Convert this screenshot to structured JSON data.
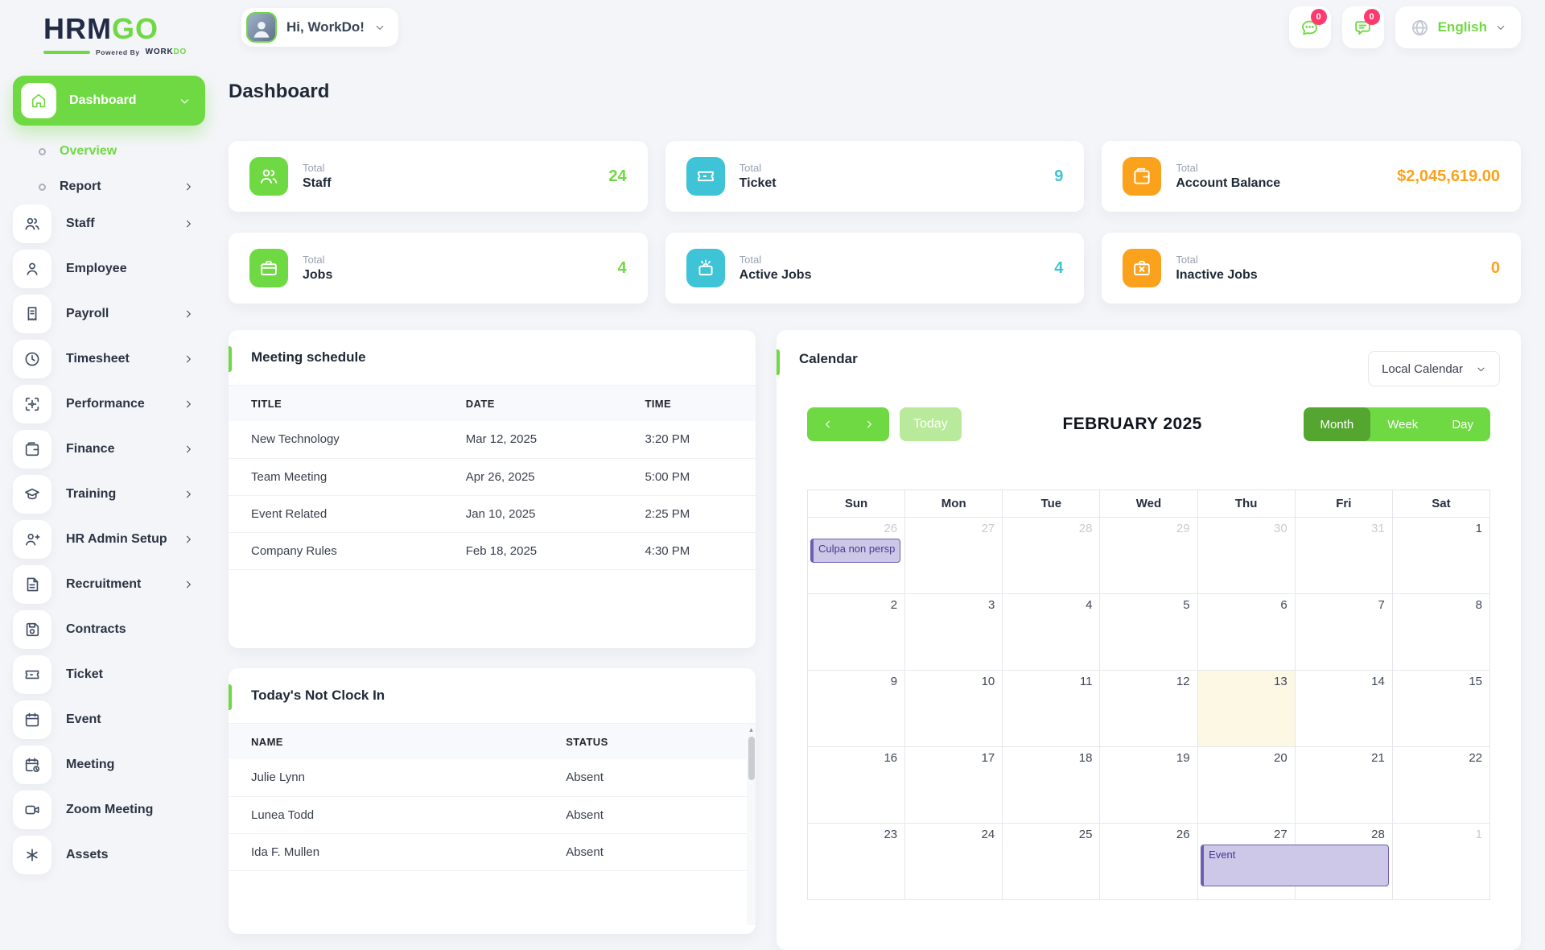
{
  "brand": {
    "name_primary": "HRM",
    "name_secondary": "GO",
    "powered_by": "Powered By",
    "powered_work": "WORK",
    "powered_do": "DO"
  },
  "header": {
    "greeting": "Hi, WorkDo!",
    "language": "English",
    "messages_badge": "0",
    "notifications_badge": "0"
  },
  "page": {
    "title": "Dashboard"
  },
  "sidebar": {
    "items": [
      {
        "label": "Dashboard",
        "icon": "home",
        "type": "parent"
      },
      {
        "label": "Overview",
        "type": "sub",
        "active": true
      },
      {
        "label": "Report",
        "type": "sub",
        "chevron": true
      },
      {
        "label": "Staff",
        "icon": "users",
        "chevron": true
      },
      {
        "label": "Employee",
        "icon": "user"
      },
      {
        "label": "Payroll",
        "icon": "receipt",
        "chevron": true
      },
      {
        "label": "Timesheet",
        "icon": "clock",
        "chevron": true
      },
      {
        "label": "Performance",
        "icon": "scan",
        "chevron": true
      },
      {
        "label": "Finance",
        "icon": "wallet",
        "chevron": true
      },
      {
        "label": "Training",
        "icon": "graduation",
        "chevron": true
      },
      {
        "label": "HR Admin Setup",
        "icon": "user-plus",
        "chevron": true
      },
      {
        "label": "Recruitment",
        "icon": "file-text",
        "chevron": true
      },
      {
        "label": "Contracts",
        "icon": "save"
      },
      {
        "label": "Ticket",
        "icon": "ticket"
      },
      {
        "label": "Event",
        "icon": "calendar"
      },
      {
        "label": "Meeting",
        "icon": "calendar-clock"
      },
      {
        "label": "Zoom Meeting",
        "icon": "video"
      },
      {
        "label": "Assets",
        "icon": "asterisk"
      }
    ]
  },
  "stats": [
    {
      "kicker": "Total",
      "label": "Staff",
      "value": "24",
      "color": "green",
      "icon": "users"
    },
    {
      "kicker": "Total",
      "label": "Ticket",
      "value": "9",
      "color": "cyan",
      "icon": "ticket"
    },
    {
      "kicker": "Total",
      "label": "Account Balance",
      "value": "$2,045,619.00",
      "color": "orange",
      "icon": "wallet"
    },
    {
      "kicker": "Total",
      "label": "Jobs",
      "value": "4",
      "color": "green",
      "icon": "briefcase"
    },
    {
      "kicker": "Total",
      "label": "Active Jobs",
      "value": "4",
      "color": "cyan",
      "icon": "briefcase-spark"
    },
    {
      "kicker": "Total",
      "label": "Inactive Jobs",
      "value": "0",
      "color": "orange",
      "icon": "briefcase-x"
    }
  ],
  "meeting_schedule": {
    "title": "Meeting schedule",
    "columns": [
      "TITLE",
      "DATE",
      "TIME"
    ],
    "rows": [
      [
        "New Technology",
        "Mar 12, 2025",
        "3:20 PM"
      ],
      [
        "Team Meeting",
        "Apr 26, 2025",
        "5:00 PM"
      ],
      [
        "Event Related",
        "Jan 10, 2025",
        "2:25 PM"
      ],
      [
        "Company Rules",
        "Feb 18, 2025",
        "4:30 PM"
      ]
    ]
  },
  "not_clock_in": {
    "title": "Today's Not Clock In",
    "columns": [
      "NAME",
      "STATUS"
    ],
    "rows": [
      [
        "Julie Lynn",
        "Absent"
      ],
      [
        "Lunea Todd",
        "Absent"
      ],
      [
        "Ida F. Mullen",
        "Absent"
      ]
    ]
  },
  "calendar": {
    "title": "Calendar",
    "source_select": "Local Calendar",
    "today_label": "Today",
    "month_title": "FEBRUARY 2025",
    "views": [
      "Month",
      "Week",
      "Day"
    ],
    "active_view": "Month",
    "day_headers": [
      "Sun",
      "Mon",
      "Tue",
      "Wed",
      "Thu",
      "Fri",
      "Sat"
    ],
    "weeks": [
      [
        {
          "d": 26,
          "m": 1
        },
        {
          "d": 27,
          "m": 1
        },
        {
          "d": 28,
          "m": 1
        },
        {
          "d": 29,
          "m": 1
        },
        {
          "d": 30,
          "m": 1
        },
        {
          "d": 31,
          "m": 1
        },
        {
          "d": 1
        }
      ],
      [
        {
          "d": 2
        },
        {
          "d": 3
        },
        {
          "d": 4
        },
        {
          "d": 5
        },
        {
          "d": 6
        },
        {
          "d": 7
        },
        {
          "d": 8
        }
      ],
      [
        {
          "d": 9
        },
        {
          "d": 10
        },
        {
          "d": 11
        },
        {
          "d": 12
        },
        {
          "d": 13,
          "today": 1
        },
        {
          "d": 14
        },
        {
          "d": 15
        }
      ],
      [
        {
          "d": 16
        },
        {
          "d": 17
        },
        {
          "d": 18
        },
        {
          "d": 19
        },
        {
          "d": 20
        },
        {
          "d": 21
        },
        {
          "d": 22
        }
      ],
      [
        {
          "d": 23
        },
        {
          "d": 24
        },
        {
          "d": 25
        },
        {
          "d": 26
        },
        {
          "d": 27
        },
        {
          "d": 28
        },
        {
          "d": 1,
          "m": 1
        }
      ]
    ],
    "today_date": "13",
    "events": [
      {
        "label": "Culpa non persp",
        "week": 0,
        "day": 0,
        "span": 1
      },
      {
        "label": "Event",
        "week": 4,
        "day": 4,
        "span": 2
      }
    ]
  },
  "colors": {
    "brand_green": "#6fd943",
    "active_view_green": "#55a630",
    "cyan": "#3ec4d6",
    "orange": "#faa21b",
    "badge_pink": "#ff3a6e",
    "event_purple_bg": "#cdc7e8",
    "event_purple_border": "#6b60b0",
    "today_yellow": "#fcf8e3"
  }
}
